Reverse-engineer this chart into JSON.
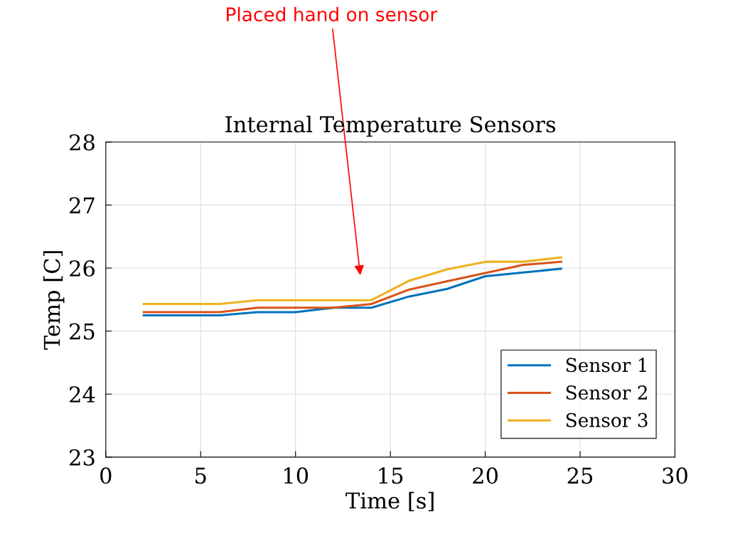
{
  "chart_data": {
    "type": "line",
    "title": "Internal Temperature Sensors",
    "xlabel": "Time [s]",
    "ylabel": "Temp [C]",
    "x": [
      2,
      4,
      6,
      8,
      10,
      12,
      14,
      16,
      18,
      20,
      22,
      24
    ],
    "series": [
      {
        "name": "Sensor 1",
        "color": "#0072bd",
        "values": [
          25.25,
          25.25,
          25.25,
          25.3,
          25.3,
          25.37,
          25.37,
          25.55,
          25.67,
          25.87,
          25.93,
          25.99
        ]
      },
      {
        "name": "Sensor 2",
        "color": "#d95319",
        "values": [
          25.3,
          25.3,
          25.3,
          25.37,
          25.37,
          25.37,
          25.43,
          25.66,
          25.79,
          25.92,
          26.05,
          26.1
        ]
      },
      {
        "name": "Sensor 3",
        "color": "#edb120",
        "values": [
          25.43,
          25.43,
          25.43,
          25.49,
          25.49,
          25.49,
          25.49,
          25.8,
          25.98,
          26.1,
          26.1,
          26.17
        ]
      }
    ],
    "annotations": [
      "Placed hand on sensor"
    ],
    "xlim": [
      0,
      30
    ],
    "xticks": [
      0,
      5,
      10,
      15,
      20,
      25,
      30
    ],
    "ylim": [
      23,
      28
    ],
    "yticks": [
      23,
      24,
      25,
      26,
      27,
      28
    ],
    "grid": true,
    "legend": "bottom right",
    "marker": "none",
    "line_style": "solid"
  }
}
